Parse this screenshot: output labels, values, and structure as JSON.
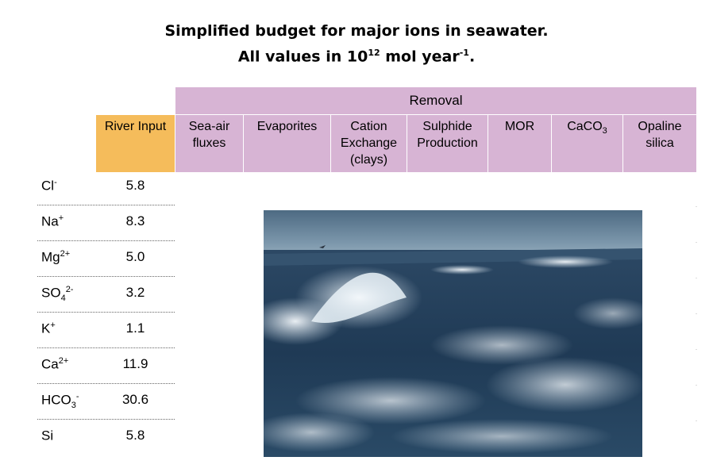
{
  "title": {
    "line1": "Simplified budget for major ions in seawater.",
    "line2_prefix": "All values in 10",
    "line2_exp": "12",
    "line2_mid": " mol year",
    "line2_exp2": "-1",
    "line2_end": "."
  },
  "header": {
    "removal": "Removal",
    "river_input": "River Input",
    "columns": [
      "Sea-air fluxes",
      "Evaporites",
      "Cation Exchange (clays)",
      "Sulphide Production",
      "MOR",
      "CaCO",
      "Opaline silica"
    ],
    "caco3_sub": "3"
  },
  "rows": [
    {
      "base": "Cl",
      "sub": "",
      "sup": "-",
      "value": "5.8"
    },
    {
      "base": "Na",
      "sub": "",
      "sup": "+",
      "value": "8.3"
    },
    {
      "base": "Mg",
      "sub": "",
      "sup": "2+",
      "value": "5.0"
    },
    {
      "base": "SO",
      "sub": "4",
      "sup": "2-",
      "value": "3.2"
    },
    {
      "base": "K",
      "sub": "",
      "sup": "+",
      "value": "1.1"
    },
    {
      "base": "Ca",
      "sub": "",
      "sup": "2+",
      "value": "11.9"
    },
    {
      "base": "HCO",
      "sub": "3",
      "sup": "-",
      "value": "30.6"
    },
    {
      "base": "Si",
      "sub": "",
      "sup": "",
      "value": "5.8"
    }
  ],
  "colors": {
    "removal_bg": "#d7b4d4",
    "river_bg": "#f5bc5b"
  }
}
